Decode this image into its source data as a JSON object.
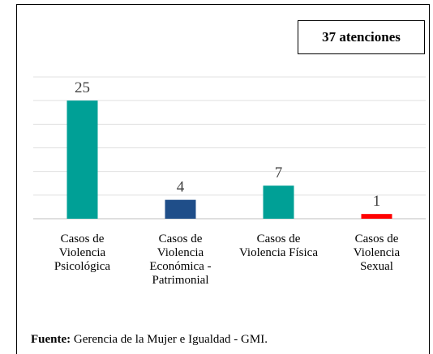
{
  "chart_data": {
    "type": "bar",
    "categories": [
      "Casos de Violencia Psicológica",
      "Casos de Violencia Económica - Patrimonial",
      "Casos de Violencia Física",
      "Casos de Violencia Sexual"
    ],
    "values": [
      25,
      4,
      7,
      1
    ],
    "colors": [
      "#00a096",
      "#1f4e89",
      "#00a096",
      "#ff0000"
    ],
    "ylim": [
      0,
      30
    ],
    "yticks": [
      0,
      5,
      10,
      15,
      20,
      25,
      30
    ],
    "grid": true,
    "annotation": "37 atenciones",
    "source": {
      "label": "Fuente:",
      "text": "Gerencia de la Mujer e Igualdad - GMI."
    }
  }
}
